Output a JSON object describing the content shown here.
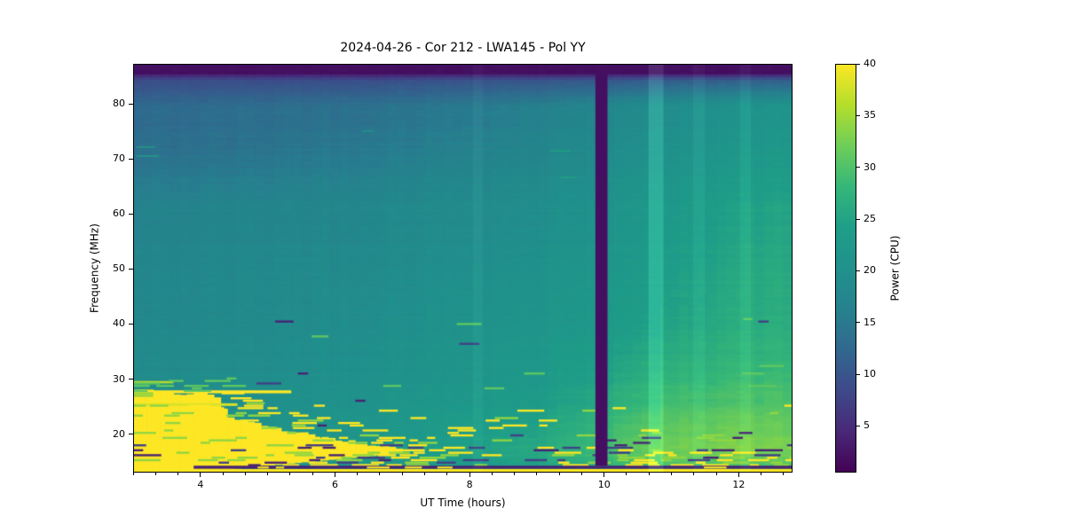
{
  "title": "2024-04-26 - Cor 212 - LWA145 - Pol YY",
  "chart_data": {
    "type": "heatmap",
    "title": "2024-04-26 - Cor 212 - LWA145 - Pol YY",
    "xlabel": "UT Time (hours)",
    "ylabel": "Frequency (MHz)",
    "colorbar_label": "Power (CPU)",
    "x_range": [
      3.0,
      12.8
    ],
    "y_range": [
      13.0,
      87.3
    ],
    "value_range": [
      0.5,
      40
    ],
    "x_major_ticks": [
      4,
      6,
      8,
      10,
      12
    ],
    "x_minor_step": 0.33333,
    "y_major_ticks": [
      20,
      30,
      40,
      50,
      60,
      70,
      80
    ],
    "colorbar_ticks": [
      5,
      10,
      15,
      20,
      25,
      30,
      35,
      40
    ],
    "colormap_name": "viridis",
    "colormap_stops": [
      [
        0.0,
        "#440154"
      ],
      [
        0.1,
        "#482878"
      ],
      [
        0.2,
        "#3e4989"
      ],
      [
        0.3,
        "#31688e"
      ],
      [
        0.4,
        "#26828e"
      ],
      [
        0.5,
        "#21918c"
      ],
      [
        0.6,
        "#1f9e89"
      ],
      [
        0.7,
        "#35b779"
      ],
      [
        0.8,
        "#6ece58"
      ],
      [
        0.9,
        "#b5de2b"
      ],
      [
        1.0,
        "#fde725"
      ]
    ],
    "background_grid": {
      "times": [
        3.0,
        4.5,
        6.0,
        7.5,
        9.0,
        10.3,
        11.0,
        11.8,
        12.8
      ],
      "freqs": [
        87.3,
        85.8,
        84.5,
        80,
        72,
        62,
        52,
        42,
        34,
        29,
        25,
        21,
        18,
        16,
        14.5,
        13
      ],
      "power": [
        [
          2,
          2,
          2,
          2,
          2,
          2,
          2,
          2,
          2
        ],
        [
          2,
          2,
          2,
          2,
          2,
          2,
          2,
          2,
          2
        ],
        [
          9,
          9,
          9,
          9.5,
          10,
          10.5,
          11,
          11,
          11
        ],
        [
          12.5,
          13,
          13.5,
          14.5,
          16,
          18,
          19,
          20.5,
          21
        ],
        [
          13.5,
          14,
          15,
          16,
          17.5,
          19.5,
          20.5,
          22,
          22.5
        ],
        [
          16.5,
          17,
          17.5,
          18.5,
          19.5,
          21.5,
          22.5,
          24.5,
          25
        ],
        [
          17.5,
          18,
          18.5,
          19.5,
          20.5,
          22.5,
          24,
          25.5,
          26
        ],
        [
          18,
          18.5,
          19.5,
          20.5,
          21.5,
          23.5,
          25,
          26.5,
          26.5
        ],
        [
          18.5,
          19,
          20,
          21,
          22.5,
          25,
          26.5,
          27.5,
          27.5
        ],
        [
          19,
          19.5,
          20.5,
          21.5,
          23,
          26.5,
          28,
          29,
          29
        ],
        [
          19.5,
          20,
          21,
          22.5,
          24,
          28,
          29.5,
          30.5,
          30
        ],
        [
          20,
          20.5,
          21.5,
          23,
          25,
          29.5,
          31,
          32,
          31.5
        ],
        [
          21,
          21,
          22,
          24,
          26,
          30.5,
          32,
          33,
          32.5
        ],
        [
          21.5,
          21,
          22,
          24,
          26,
          30,
          31.5,
          32,
          32
        ],
        [
          21,
          20.5,
          21.5,
          23,
          25,
          28.5,
          30,
          30.5,
          30
        ],
        [
          21,
          20.5,
          21,
          22.5,
          24.5,
          28,
          29.5,
          30,
          29.5
        ]
      ]
    },
    "features": {
      "top_band": {
        "f_min": 85.6,
        "f_max": 87.3,
        "power": 2
      },
      "burst": {
        "envelope": [
          [
            3.0,
            28.2
          ],
          [
            3.3,
            27.8
          ],
          [
            3.7,
            27.4
          ],
          [
            4.1,
            27.1
          ],
          [
            4.3,
            26.5
          ],
          [
            4.35,
            24.5
          ],
          [
            4.45,
            23.0
          ],
          [
            4.6,
            22.3
          ],
          [
            4.85,
            21.7
          ],
          [
            5.15,
            21.0
          ],
          [
            5.45,
            20.3
          ],
          [
            5.75,
            19.6
          ],
          [
            6.05,
            19.0
          ],
          [
            6.35,
            18.4
          ],
          [
            6.65,
            17.9
          ],
          [
            7.0,
            17.3
          ]
        ],
        "f_bottom": 13.6,
        "bottom_rise_start": 4.4,
        "bottom_rise_rate": 1.15,
        "power": 40
      },
      "left_rows": [
        {
          "f": 27.5,
          "h": 0.45,
          "t0": 3.0,
          "t1": 5.35,
          "power": 40
        },
        {
          "f": 25.2,
          "h": 0.4,
          "t0": 3.0,
          "t1": 4.55,
          "power": 38
        },
        {
          "f": 29.3,
          "h": 0.35,
          "t0": 3.0,
          "t1": 3.6,
          "power": 36
        }
      ],
      "high_dashes": [
        {
          "t": 3.05,
          "f": 72.3,
          "len": 0.28,
          "power": 25
        },
        {
          "t": 3.05,
          "f": 70.7,
          "len": 0.33,
          "power": 25
        },
        {
          "t": 9.2,
          "f": 71.6,
          "len": 0.3,
          "power": 25
        },
        {
          "t": 9.35,
          "f": 66.8,
          "len": 0.25,
          "power": 25
        },
        {
          "t": 6.4,
          "f": 75.2,
          "len": 0.18,
          "power": 24
        }
      ],
      "vertical_bands": [
        {
          "type": "dark",
          "t0": 9.87,
          "t1": 10.05,
          "power": 2,
          "f_min": 14.25
        },
        {
          "type": "light",
          "t0": 10.66,
          "t1": 10.88,
          "alpha": 0.2
        },
        {
          "type": "light",
          "t0": 11.32,
          "t1": 11.5,
          "alpha": 0.07
        },
        {
          "type": "light",
          "t0": 12.02,
          "t1": 12.18,
          "alpha": 0.07
        },
        {
          "type": "light",
          "t0": 8.05,
          "t1": 8.2,
          "alpha": 0.05
        }
      ],
      "bottom_rows": {
        "yellow": {
          "f0": 13.0,
          "f1": 13.65,
          "power": 40
        },
        "dark": {
          "f0": 13.7,
          "f1": 14.25,
          "power": 4,
          "t0": 3.9,
          "dash_p": 0.2
        }
      },
      "stripes": {
        "seed": 42,
        "f_min": 14.3,
        "f_max": 42,
        "row_h": 0.45,
        "yellow_base": [
          [
            17.5,
            0.32
          ],
          [
            20,
            0.18
          ],
          [
            23,
            0.1
          ],
          [
            26,
            0.06
          ],
          [
            30,
            0.03
          ],
          [
            42,
            0.012
          ]
        ],
        "right_boost_t": 10.05,
        "right_boost": [
          [
            17.5,
            0.3
          ],
          [
            21,
            0.12
          ],
          [
            42,
            0
          ]
        ],
        "burst_ext": {
          "t0": 4.4,
          "slope": 0.35,
          "f_ref": 27,
          "p": 0.45,
          "f_lo": 16.5,
          "f_hi": 31
        },
        "left_low": {
          "f_max": 17,
          "t_max": 7.5,
          "p": 0.35
        },
        "dark": [
          [
            15.5,
            0.3
          ],
          [
            18.5,
            0.26
          ],
          [
            20.5,
            0.1
          ],
          [
            42,
            0.01
          ]
        ],
        "teal_punch": {
          "f_max": 16.5,
          "t_min": 4.4,
          "t_max": 7.5,
          "p": 0.18,
          "power": 21
        }
      },
      "noise": {
        "t_bin": 0.14,
        "f_bin": 0.5,
        "row": 0.7,
        "col": 0.5,
        "bin": 0.5
      }
    }
  }
}
